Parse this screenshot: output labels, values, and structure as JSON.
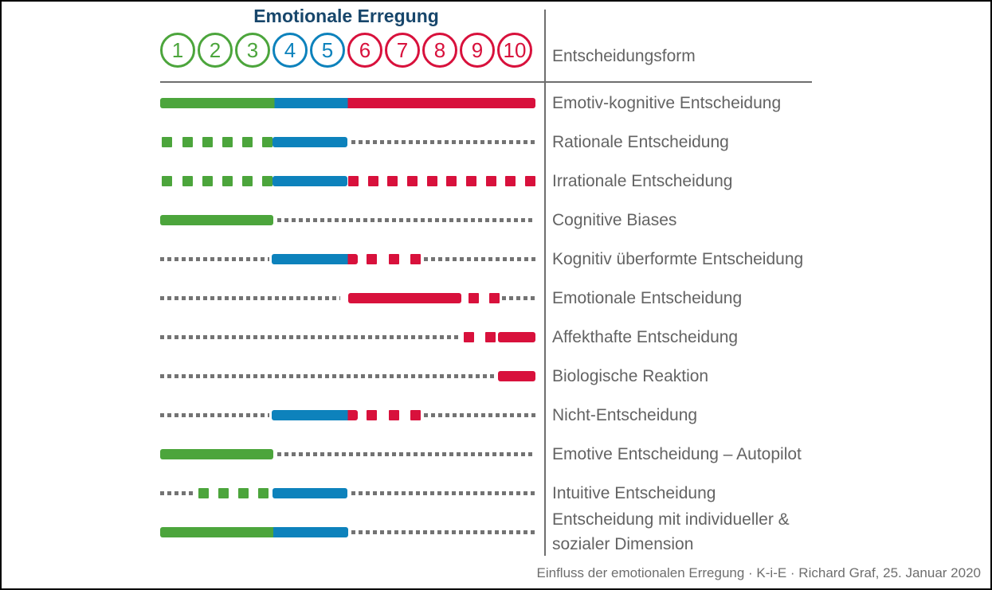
{
  "colors": {
    "green": "#4CA53C",
    "blue": "#0D82BC",
    "red": "#D8113C",
    "gray": "#737373",
    "title_navy": "#17466B",
    "label_gray": "#636363",
    "line_gray": "#6E6E6E"
  },
  "title": "Emotionale Erregung",
  "column_header": "Entscheidungsform",
  "scale": {
    "circles": [
      {
        "value": "1",
        "color": "green"
      },
      {
        "value": "2",
        "color": "green"
      },
      {
        "value": "3",
        "color": "green"
      },
      {
        "value": "4",
        "color": "blue"
      },
      {
        "value": "5",
        "color": "blue"
      },
      {
        "value": "6",
        "color": "red"
      },
      {
        "value": "7",
        "color": "red"
      },
      {
        "value": "8",
        "color": "red"
      },
      {
        "value": "9",
        "color": "red"
      },
      {
        "value": "10",
        "color": "red"
      }
    ]
  },
  "chart_data": {
    "type": "bar",
    "orientation": "horizontal",
    "title": "Emotionale Erregung",
    "x_axis": {
      "label": "Emotionale Erregung",
      "ticks": [
        1,
        2,
        3,
        4,
        5,
        6,
        7,
        8,
        9,
        10
      ],
      "range": [
        0.5,
        10.5
      ],
      "tick_colors": {
        "1": "green",
        "2": "green",
        "3": "green",
        "4": "blue",
        "5": "blue",
        "6": "red",
        "7": "red",
        "8": "red",
        "9": "red",
        "10": "red"
      }
    },
    "column_header": "Entscheidungsform",
    "rows": [
      {
        "label": "Emotiv-kognitive Entscheidung",
        "segments": [
          {
            "style": "solid",
            "color": "green",
            "from": 0.5,
            "to": 3.55
          },
          {
            "style": "solid",
            "color": "blue",
            "from": 3.55,
            "to": 5.5
          },
          {
            "style": "solid",
            "color": "red",
            "from": 5.5,
            "to": 10.5
          }
        ]
      },
      {
        "label": "Rationale Entscheidung",
        "segments": [
          {
            "style": "squares",
            "color": "green",
            "from": 0.55,
            "to": 3.5,
            "count": 6
          },
          {
            "style": "solid",
            "color": "blue",
            "from": 3.5,
            "to": 5.5
          },
          {
            "style": "dots",
            "color": "gray",
            "from": 5.6,
            "to": 10.5
          }
        ]
      },
      {
        "label": "Irrationale Entscheidung",
        "segments": [
          {
            "style": "squares",
            "color": "green",
            "from": 0.55,
            "to": 3.5,
            "count": 6
          },
          {
            "style": "solid",
            "color": "blue",
            "from": 3.5,
            "to": 5.5
          },
          {
            "style": "squares",
            "color": "red",
            "from": 5.51,
            "to": 10.5,
            "count": 10
          }
        ]
      },
      {
        "label": "Cognitive Biases",
        "segments": [
          {
            "style": "solid",
            "color": "green",
            "from": 0.5,
            "to": 3.52
          },
          {
            "style": "dots",
            "color": "gray",
            "from": 3.62,
            "to": 10.5
          }
        ]
      },
      {
        "label": "Kognitiv überformte Entscheidung",
        "segments": [
          {
            "style": "dots",
            "color": "gray",
            "from": 0.5,
            "to": 3.41
          },
          {
            "style": "solid",
            "color": "blue",
            "from": 3.47,
            "to": 5.5
          },
          {
            "style": "solid",
            "color": "red",
            "from": 5.5,
            "to": 5.77
          },
          {
            "style": "squares",
            "color": "red",
            "from": 6.0,
            "to": 7.44,
            "count": 3
          },
          {
            "style": "dots",
            "color": "gray",
            "from": 7.53,
            "to": 10.5
          }
        ]
      },
      {
        "label": "Emotionale Entscheidung",
        "segments": [
          {
            "style": "dots",
            "color": "gray",
            "from": 0.5,
            "to": 5.3
          },
          {
            "style": "solid",
            "color": "red",
            "from": 5.51,
            "to": 8.53
          },
          {
            "style": "squares",
            "color": "red",
            "from": 8.72,
            "to": 9.54,
            "count": 2
          },
          {
            "style": "dots",
            "color": "gray",
            "from": 9.61,
            "to": 10.5
          }
        ]
      },
      {
        "label": "Affekthafte Entscheidung",
        "segments": [
          {
            "style": "dots",
            "color": "gray",
            "from": 0.5,
            "to": 8.44
          },
          {
            "style": "squares",
            "color": "red",
            "from": 8.59,
            "to": 9.44,
            "count": 2
          },
          {
            "style": "solid",
            "color": "red",
            "from": 9.5,
            "to": 10.5
          }
        ]
      },
      {
        "label": "Biologische Reaktion",
        "segments": [
          {
            "style": "dots",
            "color": "gray",
            "from": 0.5,
            "to": 9.44
          },
          {
            "style": "solid",
            "color": "red",
            "from": 9.5,
            "to": 10.5
          }
        ]
      },
      {
        "label": "Nicht-Entscheidung",
        "segments": [
          {
            "style": "dots",
            "color": "gray",
            "from": 0.5,
            "to": 3.41
          },
          {
            "style": "solid",
            "color": "blue",
            "from": 3.47,
            "to": 5.5
          },
          {
            "style": "solid",
            "color": "red",
            "from": 5.5,
            "to": 5.77
          },
          {
            "style": "squares",
            "color": "red",
            "from": 6.0,
            "to": 7.44,
            "count": 3
          },
          {
            "style": "dots",
            "color": "gray",
            "from": 7.53,
            "to": 10.5
          }
        ]
      },
      {
        "label": "Emotive Entscheidung – Autopilot",
        "segments": [
          {
            "style": "solid",
            "color": "green",
            "from": 0.5,
            "to": 3.52
          },
          {
            "style": "dots",
            "color": "gray",
            "from": 3.62,
            "to": 10.5
          }
        ]
      },
      {
        "label": "Intuitive Entscheidung",
        "segments": [
          {
            "style": "dots",
            "color": "gray",
            "from": 0.5,
            "to": 1.43
          },
          {
            "style": "squares",
            "color": "green",
            "from": 1.52,
            "to": 3.39,
            "count": 4
          },
          {
            "style": "solid",
            "color": "blue",
            "from": 3.5,
            "to": 5.5
          },
          {
            "style": "dots",
            "color": "gray",
            "from": 5.6,
            "to": 10.5
          }
        ]
      },
      {
        "label": "Entscheidung mit individueller &\nsozialer Dimension",
        "segments": [
          {
            "style": "solid",
            "color": "green",
            "from": 0.5,
            "to": 3.52
          },
          {
            "style": "solid",
            "color": "blue",
            "from": 3.52,
            "to": 5.5
          },
          {
            "style": "dots",
            "color": "gray",
            "from": 5.6,
            "to": 10.5
          }
        ]
      }
    ]
  },
  "footer": {
    "caption": "Einfluss der emotionalen Erregung · K-i-E · Richard Graf, 25. Januar 2020"
  }
}
